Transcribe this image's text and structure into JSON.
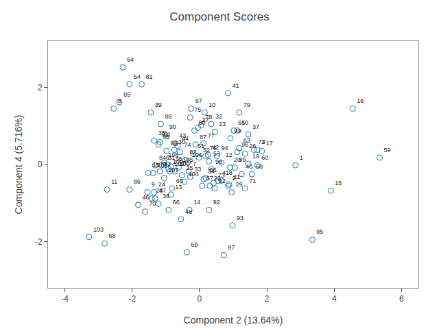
{
  "chart_data": {
    "type": "scatter",
    "title": "Component Scores",
    "xlabel": "Component 2 (13.64%)",
    "ylabel": "Component 4 (5.716%)",
    "xlim": [
      -4.5,
      6.5
    ],
    "ylim": [
      -3.2,
      3.2
    ],
    "xticks": [
      -4,
      -2,
      0,
      2,
      4,
      6
    ],
    "yticks": [
      -2,
      0,
      2
    ],
    "grid": false,
    "marker": "circle-open",
    "point_labels": [
      "1",
      "2",
      "3",
      "4",
      "6",
      "7",
      "8",
      "9",
      "10",
      "11",
      "12",
      "13",
      "14",
      "15",
      "16",
      "17",
      "18",
      "19",
      "20",
      "21",
      "22",
      "23",
      "24",
      "25",
      "26",
      "27",
      "28",
      "29",
      "30",
      "31",
      "32",
      "33",
      "34",
      "35",
      "36",
      "37",
      "38",
      "39",
      "40",
      "41",
      "42",
      "43",
      "44",
      "45",
      "46",
      "47",
      "48",
      "49",
      "50",
      "51",
      "52",
      "53",
      "54",
      "55",
      "56",
      "57",
      "58",
      "59",
      "60",
      "61",
      "62",
      "63",
      "64",
      "65",
      "66",
      "67",
      "68",
      "69",
      "70",
      "71",
      "72",
      "73",
      "74",
      "75",
      "76",
      "77",
      "78",
      "79",
      "80",
      "81",
      "82",
      "83",
      "84",
      "85",
      "86",
      "87",
      "88",
      "89",
      "90",
      "91",
      "92",
      "93",
      "94",
      "95",
      "96",
      "97",
      "98",
      "99",
      "100",
      "101",
      "102",
      "103",
      "104",
      "105",
      "106",
      "107",
      "108",
      "109"
    ],
    "x": [
      2.85,
      0.85,
      1.72,
      0.55,
      -1.12,
      -0.32,
      -2.55,
      -1.55,
      0.15,
      -2.75,
      0.65,
      -0.85,
      -0.3,
      3.9,
      4.55,
      1.85,
      0.65,
      1.45,
      0.9,
      0.88,
      0.3,
      0.45,
      -1.35,
      -0.52,
      1.35,
      -0.05,
      -1.42,
      0.95,
      -0.75,
      -1.05,
      0.35,
      -0.28,
      0.12,
      -1.35,
      -1.22,
      1.45,
      -0.85,
      -1.45,
      1.25,
      0.85,
      0.25,
      -0.72,
      -0.65,
      -1.52,
      -1.82,
      -1.32,
      -0.55,
      0.92,
      1.12,
      -0.18,
      -0.02,
      0.28,
      -2.08,
      -1.22,
      0.18,
      0.08,
      1.55,
      5.35,
      1.72,
      1.02,
      0.45,
      1.18,
      -2.28,
      -0.82,
      -0.92,
      -0.25,
      -2.82,
      -0.38,
      -1.62,
      1.35,
      1.62,
      0.42,
      -0.58,
      -0.28,
      0.18,
      0.12,
      0.05,
      1.18,
      -0.15,
      -1.72,
      -0.42,
      -1.18,
      -1.32,
      -2.38,
      -2.08,
      -0.12,
      -0.98,
      -1.15,
      -1.02,
      -1.18,
      0.28,
      0.98,
      0.52,
      3.35,
      1.12,
      0.72,
      0.35,
      1.05,
      -0.72,
      -1.38,
      -0.88,
      -3.28,
      -0.45,
      -0.62,
      -0.35,
      -1.05,
      -1.05,
      -0.92
    ],
    "values": [
      -0.02,
      -0.55,
      0.38,
      -0.42,
      -0.02,
      -0.18,
      1.45,
      -0.72,
      1.35,
      -0.65,
      0.05,
      -0.78,
      -1.18,
      -0.68,
      1.45,
      0.35,
      -0.42,
      0.02,
      -0.08,
      -0.52,
      -0.55,
      0.85,
      -0.72,
      -0.28,
      0.28,
      0.95,
      -0.88,
      -0.72,
      0.38,
      -0.02,
      1.05,
      -0.32,
      -0.38,
      0.62,
      -1.02,
      0.78,
      -0.05,
      1.35,
      -0.25,
      1.85,
      0.25,
      0.55,
      0.48,
      -0.22,
      -1.05,
      -0.88,
      -1.42,
      0.68,
      0.88,
      0.28,
      0.18,
      0.08,
      2.08,
      0.52,
      -0.35,
      -0.55,
      -0.25,
      0.18,
      -0.02,
      0.88,
      -0.62,
      0.42,
      2.52,
      -0.62,
      -1.18,
      1.45,
      -2.05,
      -2.28,
      -1.22,
      -0.62,
      0.38,
      -0.48,
      0.32,
      1.22,
      0.22,
      0.55,
      1.02,
      1.35,
      0.88,
      2.08,
      0.12,
      -0.18,
      -0.02,
      1.62,
      -0.65,
      0.52,
      0.35,
      1.05,
      0.78,
      0.58,
      -1.18,
      -1.58,
      0.22,
      -1.95,
      0.32,
      -2.35,
      -0.12,
      -0.08,
      -0.18,
      -0.22,
      -0.18,
      -1.88,
      -0.45,
      -0.08,
      0.05,
      -0.35,
      0.05,
      -0.12
    ]
  }
}
